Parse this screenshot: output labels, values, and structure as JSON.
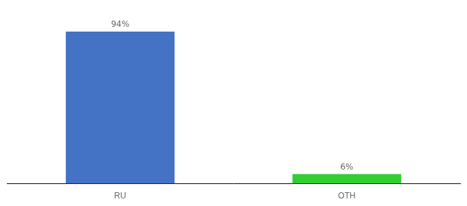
{
  "chart_data": {
    "type": "bar",
    "categories": [
      "RU",
      "OTH"
    ],
    "values": [
      94,
      6
    ],
    "value_labels": [
      "94%",
      "6%"
    ],
    "data_labels": true,
    "colors": [
      "#4472c4",
      "#33cc33"
    ],
    "ylim": [
      0,
      105
    ],
    "grid": false,
    "tick_labels": "x"
  }
}
